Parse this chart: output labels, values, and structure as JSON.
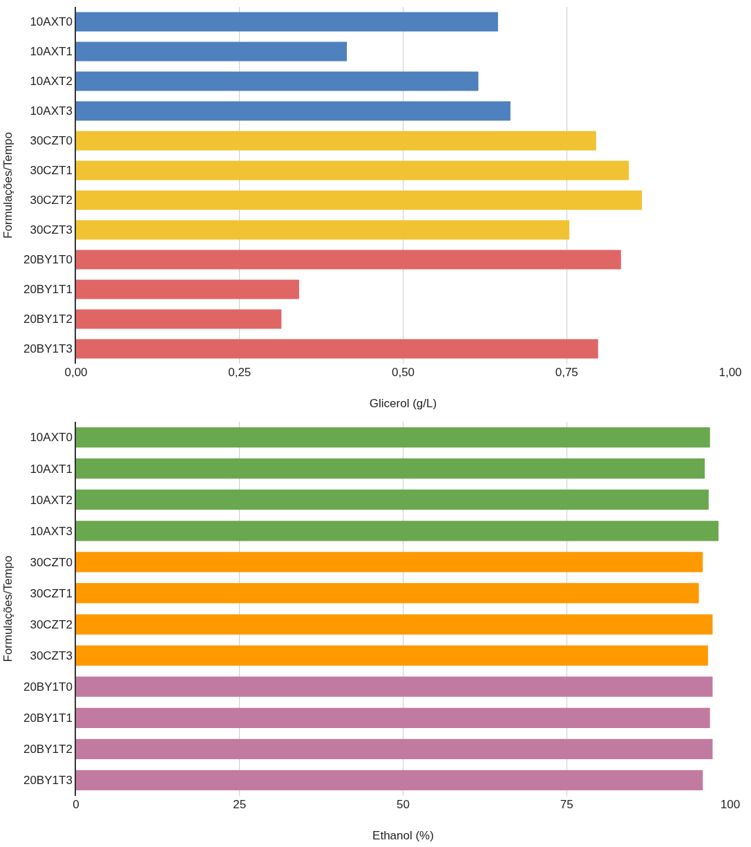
{
  "chart_data": [
    {
      "type": "bar",
      "orientation": "horizontal",
      "xlabel": "Glicerol (g/L)",
      "ylabel": "Formulações/Tempo",
      "categories": [
        "10AXT0",
        "10AXT1",
        "10AXT2",
        "10AXT3",
        "30CZT0",
        "30CZT1",
        "30CZT2",
        "30CZT3",
        "20BY1T0",
        "20BY1T1",
        "20BY1T2",
        "20BY1T3"
      ],
      "values": [
        0.645,
        0.414,
        0.615,
        0.664,
        0.795,
        0.845,
        0.865,
        0.754,
        0.833,
        0.341,
        0.314,
        0.798
      ],
      "colors": [
        "#4e81bd",
        "#4e81bd",
        "#4e81bd",
        "#4e81bd",
        "#f1c232",
        "#f1c232",
        "#f1c232",
        "#f1c232",
        "#e06666",
        "#e06666",
        "#e06666",
        "#e06666"
      ],
      "xlim": [
        0,
        1
      ],
      "xticks": [
        {
          "value": 0,
          "label": "0,00"
        },
        {
          "value": 0.25,
          "label": "0,25"
        },
        {
          "value": 0.5,
          "label": "0,50"
        },
        {
          "value": 0.75,
          "label": "0,75"
        },
        {
          "value": 1,
          "label": "1,00"
        }
      ],
      "grid": "x"
    },
    {
      "type": "bar",
      "orientation": "horizontal",
      "xlabel": "Ethanol (%)",
      "ylabel": "Formulações/Tempo",
      "categories": [
        "10AXT0",
        "10AXT1",
        "10AXT2",
        "10AXT3",
        "30CZT0",
        "30CZT1",
        "30CZT2",
        "30CZT3",
        "20BY1T0",
        "20BY1T1",
        "20BY1T2",
        "20BY1T3"
      ],
      "values": [
        96.9,
        96.1,
        96.7,
        98.2,
        95.8,
        95.2,
        97.3,
        96.6,
        97.3,
        96.9,
        97.3,
        95.8
      ],
      "colors": [
        "#6aa84f",
        "#6aa84f",
        "#6aa84f",
        "#6aa84f",
        "#ff9900",
        "#ff9900",
        "#ff9900",
        "#ff9900",
        "#c27ba0",
        "#c27ba0",
        "#c27ba0",
        "#c27ba0"
      ],
      "xlim": [
        0,
        100
      ],
      "xticks": [
        0,
        25,
        50,
        75,
        100
      ],
      "grid": "x"
    }
  ]
}
